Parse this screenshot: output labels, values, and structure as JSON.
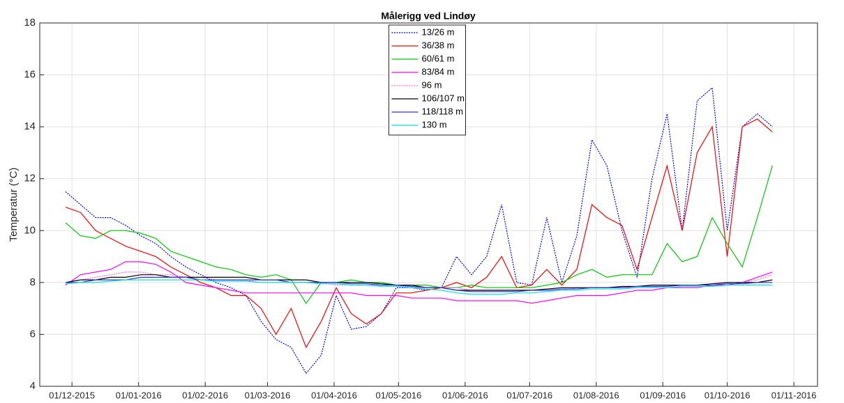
{
  "chart_data": {
    "type": "line",
    "title": "Målerigg ved Lindøy",
    "y_label": "Temperatur (°C)",
    "x": [
      "2015-11-28",
      "2015-12-05",
      "2015-12-12",
      "2015-12-19",
      "2015-12-26",
      "2016-01-02",
      "2016-01-09",
      "2016-01-16",
      "2016-01-23",
      "2016-01-30",
      "2016-02-06",
      "2016-02-13",
      "2016-02-20",
      "2016-02-27",
      "2016-03-05",
      "2016-03-12",
      "2016-03-19",
      "2016-03-26",
      "2016-04-02",
      "2016-04-09",
      "2016-04-16",
      "2016-04-23",
      "2016-04-30",
      "2016-05-07",
      "2016-05-14",
      "2016-05-21",
      "2016-05-28",
      "2016-06-04",
      "2016-06-11",
      "2016-06-18",
      "2016-06-25",
      "2016-07-02",
      "2016-07-09",
      "2016-07-16",
      "2016-07-23",
      "2016-07-30",
      "2016-08-06",
      "2016-08-13",
      "2016-08-20",
      "2016-08-27",
      "2016-09-03",
      "2016-09-10",
      "2016-09-17",
      "2016-09-24",
      "2016-10-01",
      "2016-10-08",
      "2016-10-15",
      "2016-10-22"
    ],
    "series": [
      {
        "name": "13/26 m",
        "color": "#0000ff",
        "style": "dotted",
        "values": [
          11.5,
          11.0,
          10.5,
          10.5,
          10.2,
          9.8,
          9.5,
          9.0,
          8.6,
          8.3,
          8.0,
          7.8,
          7.5,
          6.5,
          5.8,
          5.5,
          4.5,
          5.2,
          7.5,
          6.2,
          6.3,
          6.8,
          7.8,
          7.8,
          7.7,
          7.8,
          9.0,
          8.3,
          9.0,
          11.0,
          8.0,
          7.9,
          10.5,
          8.0,
          9.8,
          13.5,
          12.5,
          10.0,
          8.2,
          12.0,
          14.5,
          10.0,
          15.0,
          15.5,
          10.0,
          14.0,
          14.5,
          14.0
        ]
      },
      {
        "name": "36/38 m",
        "color": "#ff0000",
        "style": "solid",
        "values": [
          10.9,
          10.7,
          10.0,
          9.7,
          9.4,
          9.2,
          9.0,
          8.6,
          8.3,
          8.0,
          7.8,
          7.5,
          7.5,
          7.0,
          6.0,
          7.0,
          5.5,
          6.5,
          7.8,
          6.8,
          6.4,
          6.8,
          7.6,
          7.6,
          7.7,
          7.8,
          8.0,
          7.8,
          8.2,
          9.0,
          7.8,
          7.9,
          8.5,
          7.9,
          8.5,
          11.0,
          10.5,
          10.2,
          8.5,
          10.5,
          12.5,
          10.0,
          13.0,
          14.0,
          9.0,
          14.0,
          14.3,
          13.8
        ]
      },
      {
        "name": "60/61 m",
        "color": "#00cc00",
        "style": "solid",
        "values": [
          10.3,
          9.8,
          9.7,
          10.0,
          10.0,
          9.9,
          9.7,
          9.2,
          9.0,
          8.8,
          8.6,
          8.5,
          8.3,
          8.2,
          8.3,
          8.1,
          7.2,
          8.0,
          8.0,
          8.1,
          8.0,
          8.0,
          7.9,
          7.9,
          7.9,
          7.8,
          7.8,
          7.9,
          7.8,
          7.8,
          7.8,
          7.8,
          7.9,
          8.0,
          8.3,
          8.5,
          8.2,
          8.3,
          8.3,
          8.3,
          9.5,
          8.8,
          9.0,
          10.5,
          9.5,
          8.6,
          10.5,
          12.5
        ]
      },
      {
        "name": "83/84 m",
        "color": "#ff00ff",
        "style": "solid",
        "values": [
          7.9,
          8.3,
          8.4,
          8.5,
          8.8,
          8.8,
          8.7,
          8.4,
          8.0,
          7.9,
          7.8,
          7.7,
          7.6,
          7.6,
          7.6,
          7.6,
          7.6,
          7.6,
          7.6,
          7.6,
          7.5,
          7.5,
          7.5,
          7.4,
          7.4,
          7.4,
          7.3,
          7.3,
          7.3,
          7.3,
          7.3,
          7.2,
          7.3,
          7.4,
          7.5,
          7.5,
          7.5,
          7.6,
          7.7,
          7.7,
          7.8,
          7.8,
          7.8,
          7.9,
          7.9,
          8.0,
          8.2,
          8.4
        ]
      },
      {
        "name": "96 m",
        "color": "#ff66ff",
        "style": "dotted",
        "values": [
          8.0,
          8.1,
          8.2,
          8.3,
          8.4,
          8.4,
          8.3,
          8.3,
          8.2,
          8.2,
          8.1,
          8.1,
          8.1,
          8.0,
          8.0,
          8.0,
          8.0,
          8.0,
          7.9,
          7.9,
          7.9,
          7.9,
          7.9,
          7.8,
          7.8,
          7.8,
          7.8,
          7.7,
          7.7,
          7.7,
          7.7,
          7.7,
          7.7,
          7.7,
          7.8,
          7.8,
          7.8,
          7.8,
          7.8,
          7.8,
          7.9,
          7.9,
          7.9,
          7.9,
          8.0,
          8.0,
          8.1,
          8.3
        ]
      },
      {
        "name": "106/107 m",
        "color": "#000000",
        "style": "solid",
        "values": [
          8.0,
          8.1,
          8.1,
          8.2,
          8.2,
          8.3,
          8.3,
          8.2,
          8.2,
          8.2,
          8.2,
          8.2,
          8.2,
          8.1,
          8.1,
          8.1,
          8.1,
          8.0,
          8.0,
          8.0,
          8.0,
          7.95,
          7.9,
          7.9,
          7.8,
          7.8,
          7.7,
          7.7,
          7.7,
          7.7,
          7.7,
          7.7,
          7.75,
          7.8,
          7.8,
          7.8,
          7.8,
          7.85,
          7.85,
          7.9,
          7.9,
          7.9,
          7.9,
          7.95,
          8.0,
          8.0,
          8.0,
          8.1
        ]
      },
      {
        "name": "118/118 m",
        "color": "#3333cc",
        "style": "solid",
        "values": [
          8.0,
          8.0,
          8.1,
          8.1,
          8.1,
          8.2,
          8.2,
          8.2,
          8.2,
          8.1,
          8.1,
          8.1,
          8.1,
          8.1,
          8.1,
          8.0,
          8.0,
          8.0,
          8.0,
          7.95,
          7.95,
          7.9,
          7.9,
          7.85,
          7.8,
          7.8,
          7.7,
          7.65,
          7.65,
          7.65,
          7.65,
          7.7,
          7.7,
          7.75,
          7.75,
          7.8,
          7.8,
          7.8,
          7.85,
          7.85,
          7.85,
          7.9,
          7.9,
          7.9,
          7.95,
          7.95,
          8.0,
          8.0
        ]
      },
      {
        "name": "130 m",
        "color": "#00e5e5",
        "style": "solid",
        "values": [
          7.95,
          8.0,
          8.0,
          8.05,
          8.1,
          8.1,
          8.1,
          8.1,
          8.1,
          8.1,
          8.05,
          8.05,
          8.05,
          8.0,
          8.0,
          8.0,
          8.0,
          7.95,
          7.95,
          7.9,
          7.9,
          7.85,
          7.85,
          7.8,
          7.75,
          7.7,
          7.6,
          7.55,
          7.55,
          7.55,
          7.6,
          7.6,
          7.65,
          7.7,
          7.7,
          7.75,
          7.75,
          7.75,
          7.8,
          7.8,
          7.8,
          7.85,
          7.85,
          7.85,
          7.9,
          7.9,
          7.9,
          7.9
        ]
      }
    ],
    "xlim": [
      "2015-11-16",
      "2016-11-12"
    ],
    "xticks": [
      {
        "value": "2015-12-01",
        "label": "01/12-2015"
      },
      {
        "value": "2016-01-01",
        "label": "01/01-2016"
      },
      {
        "value": "2016-02-01",
        "label": "01/02-2016"
      },
      {
        "value": "2016-03-01",
        "label": "01/03-2016"
      },
      {
        "value": "2016-04-01",
        "label": "01/04-2016"
      },
      {
        "value": "2016-05-01",
        "label": "01/05-2016"
      },
      {
        "value": "2016-06-01",
        "label": "01/06-2016"
      },
      {
        "value": "2016-07-01",
        "label": "01/07-2016"
      },
      {
        "value": "2016-08-01",
        "label": "01/08-2016"
      },
      {
        "value": "2016-09-01",
        "label": "01/09-2016"
      },
      {
        "value": "2016-10-01",
        "label": "01/10-2016"
      },
      {
        "value": "2016-11-01",
        "label": "01/11-2016"
      }
    ],
    "ylim": [
      4,
      18
    ],
    "yticks": [
      4,
      6,
      8,
      10,
      12,
      14,
      16,
      18
    ],
    "grid": true,
    "legend": "upper center"
  }
}
